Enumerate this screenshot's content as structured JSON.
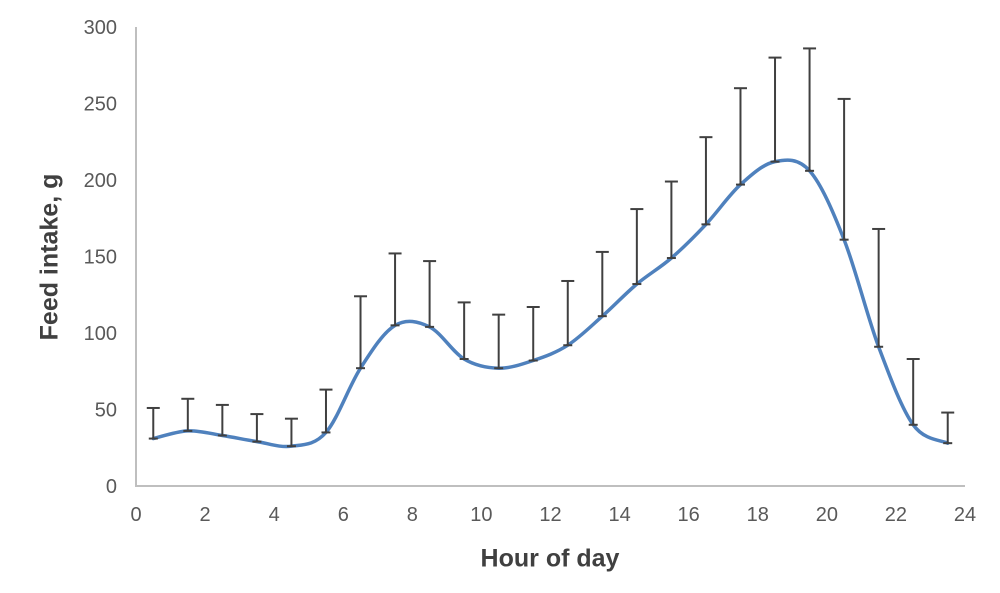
{
  "chart_data": {
    "type": "line",
    "title": "",
    "xlabel": "Hour of day",
    "ylabel": "Feed intake, g",
    "x": [
      0.5,
      1.5,
      2.5,
      3.5,
      4.5,
      5.5,
      6.5,
      7.5,
      8.5,
      9.5,
      10.5,
      11.5,
      12.5,
      13.5,
      14.5,
      15.5,
      16.5,
      17.5,
      18.5,
      19.5,
      20.5,
      21.5,
      22.5,
      23.5
    ],
    "series": [
      {
        "values": [
          31,
          36,
          33,
          29,
          26,
          35,
          77,
          105,
          104,
          83,
          77,
          82,
          92,
          111,
          132,
          149,
          171,
          197,
          212,
          206,
          161,
          91,
          40,
          28
        ],
        "error_upper": [
          51,
          57,
          53,
          47,
          44,
          63,
          124,
          152,
          147,
          120,
          112,
          117,
          134,
          153,
          181,
          199,
          228,
          260,
          280,
          286,
          253,
          168,
          83,
          48
        ]
      }
    ],
    "xlim": [
      0,
      24
    ],
    "ylim": [
      0,
      300
    ],
    "x_ticks": [
      0,
      2,
      4,
      6,
      8,
      10,
      12,
      14,
      16,
      18,
      20,
      22,
      24
    ],
    "y_ticks": [
      0,
      50,
      100,
      150,
      200,
      250,
      300
    ],
    "grid": false,
    "legend": false,
    "line_smooth": true,
    "colors": {
      "line": "#4F81BD",
      "error_bar": "#404040",
      "axis_line": "#BFBFBF",
      "tick_text": "#595959",
      "axis_title_text": "#404040",
      "background": "#FFFFFF"
    }
  }
}
